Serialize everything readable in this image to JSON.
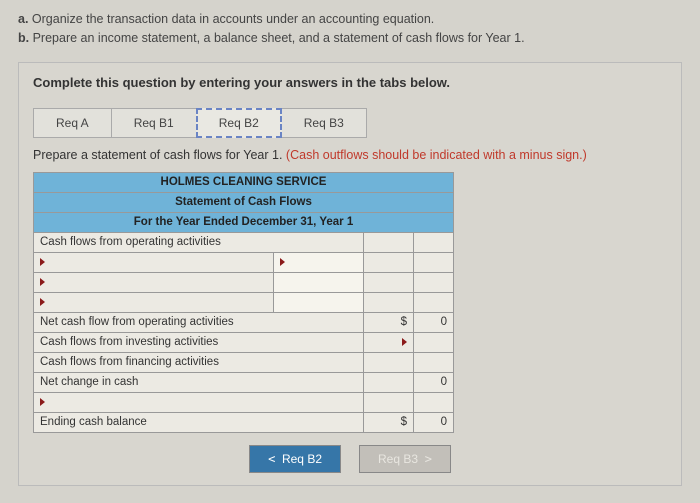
{
  "instructions": {
    "a_label": "a.",
    "a_text": "Organize the transaction data in accounts under an accounting equation.",
    "b_label": "b.",
    "b_text": "Prepare an income statement, a balance sheet, and a statement of cash flows for Year 1."
  },
  "panel": {
    "instruction": "Complete this question by entering your answers in the tabs below.",
    "tabs": [
      "Req A",
      "Req B1",
      "Req B2",
      "Req B3"
    ],
    "active_tab_index": 2,
    "prompt_main": "Prepare a statement of cash flows for Year 1. ",
    "prompt_hint": "(Cash outflows should be indicated with a minus sign.)"
  },
  "table": {
    "company": "HOLMES CLEANING SERVICE",
    "title": "Statement of Cash Flows",
    "period": "For the Year Ended December 31, Year 1",
    "r_cfoa": "Cash flows from operating activities",
    "r_net_op": "Net cash flow from operating activities",
    "r_cfi": "Cash flows from investing activities",
    "r_cff": "Cash flows from financing activities",
    "r_net_change": "Net change in cash",
    "r_ending": "Ending cash balance",
    "money": "$",
    "zero": "0"
  },
  "nav": {
    "prev_symbol": "<",
    "prev_label": "Req B2",
    "next_label": "Req B3",
    "next_symbol": ">"
  }
}
